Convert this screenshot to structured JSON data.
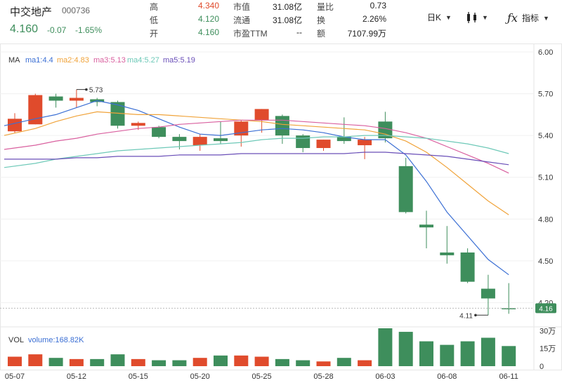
{
  "stock": {
    "name": "中交地产",
    "code": "000736",
    "price": "4.160",
    "change": "-0.07",
    "change_pct": "-1.65%"
  },
  "stats": {
    "high_label": "高",
    "high": "4.340",
    "low_label": "低",
    "low": "4.120",
    "open_label": "开",
    "open": "4.160",
    "mcap_label": "市值",
    "mcap": "31.08亿",
    "float_label": "流通",
    "float": "31.08亿",
    "pe_label": "市盈TTM",
    "pe": "--",
    "vr_label": "量比",
    "vr": "0.73",
    "turnover_label": "换",
    "turnover": "2.26%",
    "amount_label": "额",
    "amount": "7107.99万"
  },
  "toolbar": {
    "period": "日K",
    "indicator": "指标"
  },
  "legend": {
    "ma": "MA",
    "ma1": "ma1:4.4",
    "ma2": "ma2:4.83",
    "ma3": "ma3:5.13",
    "ma4": "ma4:5.27",
    "ma5": "ma5:5.19",
    "vol": "VOL",
    "volume": "volume:168.82K"
  },
  "colors": {
    "up": "#e04b2c",
    "down": "#3e8e5c",
    "ma1": "#3b6fd4",
    "ma2": "#f0a33a",
    "ma3": "#d9609f",
    "ma4": "#6ec9b8",
    "ma5": "#6a4fb8"
  },
  "chart_data": {
    "type": "candlestick",
    "price_axis": {
      "min": 3.9,
      "max": 6.0,
      "ticks": [
        "6.00",
        "5.70",
        "5.40",
        "5.10",
        "4.80",
        "4.50",
        "4.20"
      ]
    },
    "volume_axis": {
      "min": 0,
      "max": 32,
      "ticks": [
        "30万",
        "15万",
        "0"
      ]
    },
    "x_labels": [
      {
        "index": 0,
        "label": "05-07"
      },
      {
        "index": 3,
        "label": "05-12"
      },
      {
        "index": 6,
        "label": "05-15"
      },
      {
        "index": 9,
        "label": "05-20"
      },
      {
        "index": 12,
        "label": "05-25"
      },
      {
        "index": 15,
        "label": "05-28"
      },
      {
        "index": 18,
        "label": "06-03"
      },
      {
        "index": 21,
        "label": "06-08"
      },
      {
        "index": 24,
        "label": "06-11"
      }
    ],
    "candles": [
      {
        "o": 5.43,
        "c": 5.52,
        "h": 5.56,
        "l": 5.42,
        "v": 8
      },
      {
        "o": 5.48,
        "c": 5.69,
        "h": 5.7,
        "l": 5.48,
        "v": 10
      },
      {
        "o": 5.68,
        "c": 5.65,
        "h": 5.7,
        "l": 5.6,
        "v": 7
      },
      {
        "o": 5.65,
        "c": 5.67,
        "h": 5.73,
        "l": 5.6,
        "v": 6
      },
      {
        "o": 5.66,
        "c": 5.64,
        "h": 5.67,
        "l": 5.61,
        "v": 6
      },
      {
        "o": 5.64,
        "c": 5.47,
        "h": 5.65,
        "l": 5.45,
        "v": 10
      },
      {
        "o": 5.47,
        "c": 5.49,
        "h": 5.5,
        "l": 5.44,
        "v": 6
      },
      {
        "o": 5.46,
        "c": 5.39,
        "h": 5.47,
        "l": 5.38,
        "v": 5
      },
      {
        "o": 5.39,
        "c": 5.36,
        "h": 5.41,
        "l": 5.3,
        "v": 5
      },
      {
        "o": 5.33,
        "c": 5.39,
        "h": 5.41,
        "l": 5.29,
        "v": 7
      },
      {
        "o": 5.38,
        "c": 5.36,
        "h": 5.5,
        "l": 5.34,
        "v": 9
      },
      {
        "o": 5.4,
        "c": 5.5,
        "h": 5.51,
        "l": 5.32,
        "v": 9
      },
      {
        "o": 5.51,
        "c": 5.59,
        "h": 5.59,
        "l": 5.42,
        "v": 8
      },
      {
        "o": 5.54,
        "c": 5.4,
        "h": 5.55,
        "l": 5.34,
        "v": 6
      },
      {
        "o": 5.4,
        "c": 5.31,
        "h": 5.41,
        "l": 5.28,
        "v": 5
      },
      {
        "o": 5.31,
        "c": 5.37,
        "h": 5.37,
        "l": 5.29,
        "v": 4
      },
      {
        "o": 5.39,
        "c": 5.36,
        "h": 5.53,
        "l": 5.34,
        "v": 7
      },
      {
        "o": 5.33,
        "c": 5.37,
        "h": 5.39,
        "l": 5.23,
        "v": 5
      },
      {
        "o": 5.5,
        "c": 5.38,
        "h": 5.57,
        "l": 5.35,
        "v": 32
      },
      {
        "o": 5.18,
        "c": 4.85,
        "h": 5.24,
        "l": 4.84,
        "v": 29
      },
      {
        "o": 4.76,
        "c": 4.74,
        "h": 4.86,
        "l": 4.59,
        "v": 21
      },
      {
        "o": 4.56,
        "c": 4.54,
        "h": 4.75,
        "l": 4.48,
        "v": 18
      },
      {
        "o": 4.56,
        "c": 4.35,
        "h": 4.59,
        "l": 4.34,
        "v": 21
      },
      {
        "o": 4.3,
        "c": 4.23,
        "h": 4.4,
        "l": 4.11,
        "v": 24
      },
      {
        "o": 4.16,
        "c": 4.16,
        "h": 4.34,
        "l": 4.12,
        "v": 17
      }
    ],
    "ma": {
      "ma1": [
        5.47,
        5.52,
        5.55,
        5.6,
        5.65,
        5.62,
        5.58,
        5.52,
        5.46,
        5.41,
        5.4,
        5.42,
        5.44,
        5.45,
        5.44,
        5.42,
        5.39,
        5.37,
        5.37,
        5.26,
        5.07,
        4.85,
        4.68,
        4.51,
        4.4
      ],
      "ma2": [
        5.4,
        5.45,
        5.5,
        5.54,
        5.57,
        5.56,
        5.55,
        5.55,
        5.54,
        5.53,
        5.52,
        5.51,
        5.5,
        5.48,
        5.47,
        5.46,
        5.45,
        5.44,
        5.41,
        5.36,
        5.28,
        5.17,
        5.05,
        4.93,
        4.83
      ],
      "ma3": [
        5.3,
        5.33,
        5.36,
        5.38,
        5.41,
        5.43,
        5.45,
        5.46,
        5.48,
        5.49,
        5.5,
        5.51,
        5.51,
        5.51,
        5.5,
        5.49,
        5.48,
        5.47,
        5.45,
        5.42,
        5.38,
        5.32,
        5.26,
        5.2,
        5.13
      ],
      "ma4": [
        5.17,
        5.2,
        5.23,
        5.25,
        5.27,
        5.29,
        5.3,
        5.31,
        5.32,
        5.33,
        5.34,
        5.35,
        5.37,
        5.38,
        5.38,
        5.39,
        5.39,
        5.4,
        5.4,
        5.39,
        5.38,
        5.36,
        5.34,
        5.31,
        5.27
      ],
      "ma5": [
        5.23,
        5.23,
        5.23,
        5.24,
        5.24,
        5.25,
        5.25,
        5.25,
        5.26,
        5.26,
        5.26,
        5.27,
        5.27,
        5.27,
        5.27,
        5.27,
        5.27,
        5.28,
        5.28,
        5.27,
        5.26,
        5.25,
        5.23,
        5.21,
        5.19
      ]
    },
    "annotations": {
      "max_label": "5.73",
      "max_index": 3,
      "max_value": 5.73,
      "min_label": "4.11",
      "min_index": 23,
      "min_value": 4.11,
      "last_price_label": "4.16",
      "last_price": 4.16
    }
  }
}
